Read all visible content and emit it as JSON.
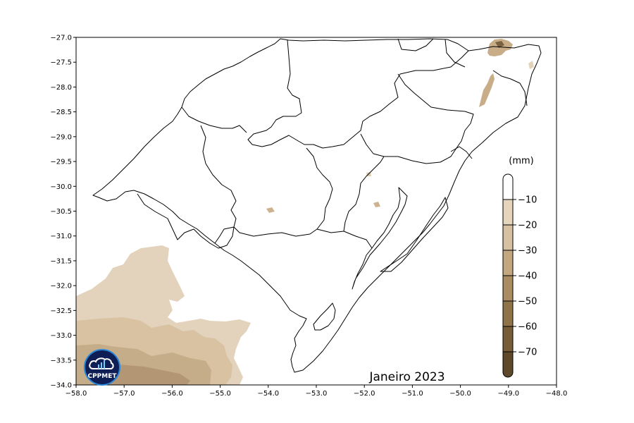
{
  "map": {
    "title": "Janeiro 2023",
    "x_ticks": [
      "−58.0",
      "−57.0",
      "−56.0",
      "−55.0",
      "−54.0",
      "−53.0",
      "−52.0",
      "−51.0",
      "−50.0",
      "−49.0",
      "−48.0"
    ],
    "y_ticks": [
      "−27.0",
      "−27.5",
      "−28.0",
      "−28.5",
      "−29.0",
      "−29.5",
      "−30.0",
      "−30.5",
      "−31.0",
      "−31.5",
      "−32.0",
      "−32.5",
      "−33.0",
      "−33.5",
      "−34.0"
    ],
    "extent": {
      "lon": [
        -58.0,
        -48.0
      ],
      "lat": [
        -34.0,
        -27.0
      ]
    }
  },
  "legend": {
    "unit": "(mm)",
    "labels": [
      "−10",
      "−20",
      "−30",
      "−40",
      "−50",
      "−60",
      "−70"
    ],
    "colors": [
      "#ffffff",
      "#e6d5bd",
      "#d6c09f",
      "#c2a781",
      "#a98c62",
      "#8f7349",
      "#765d37",
      "#5e4a2b"
    ]
  },
  "logo": {
    "text": "CPPMET"
  },
  "colors": {
    "frame": "#000000",
    "boundary": "#000000"
  }
}
